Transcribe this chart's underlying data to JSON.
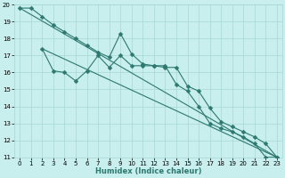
{
  "xlabel": "Humidex (Indice chaleur)",
  "xlim": [
    -0.5,
    23.5
  ],
  "ylim": [
    11,
    20
  ],
  "xticks": [
    0,
    1,
    2,
    3,
    4,
    5,
    6,
    7,
    8,
    9,
    10,
    11,
    12,
    13,
    14,
    15,
    16,
    17,
    18,
    19,
    20,
    21,
    22,
    23
  ],
  "yticks": [
    11,
    12,
    13,
    14,
    15,
    16,
    17,
    18,
    19,
    20
  ],
  "bg_color": "#c8eeed",
  "grid_color": "#a8d8d4",
  "line_color": "#2d7870",
  "line1_x": [
    0,
    1,
    2,
    3,
    4,
    5,
    6,
    7,
    8,
    9,
    10,
    11,
    12,
    13,
    14,
    15,
    16,
    17,
    18,
    19,
    20,
    21,
    22,
    23
  ],
  "line1_y": [
    19.8,
    19.8,
    19.3,
    18.8,
    18.4,
    18.0,
    17.6,
    17.2,
    16.9,
    18.3,
    17.1,
    16.5,
    16.4,
    16.4,
    15.3,
    14.9,
    14.0,
    13.0,
    12.7,
    12.5,
    12.2,
    11.8,
    11.0,
    11.0
  ],
  "line2_x": [
    2,
    3,
    4,
    5,
    6,
    7,
    8,
    9,
    10,
    11,
    12,
    13,
    14,
    15,
    16,
    17,
    18,
    19,
    20,
    21,
    22,
    23
  ],
  "line2_y": [
    17.4,
    16.1,
    16.0,
    15.5,
    16.1,
    17.0,
    16.3,
    17.0,
    16.4,
    16.4,
    16.4,
    16.3,
    16.3,
    15.2,
    14.9,
    13.9,
    13.1,
    12.8,
    12.5,
    12.2,
    11.8,
    11.0
  ],
  "line3_x": [
    0,
    23
  ],
  "line3_y": [
    19.8,
    11.0
  ],
  "line4_x": [
    2,
    23
  ],
  "line4_y": [
    17.4,
    11.0
  ],
  "marker_size": 2.5,
  "linewidth": 0.8,
  "tick_fontsize": 5,
  "xlabel_fontsize": 6
}
